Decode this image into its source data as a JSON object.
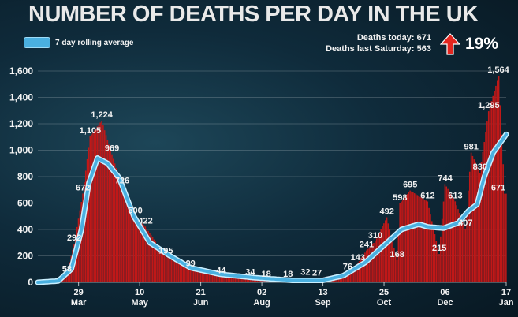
{
  "title": "NUMBER OF DEATHS PER DAY IN THE UK",
  "legend_label": "7 day rolling average",
  "stats": {
    "today_label": "Deaths today: 671",
    "last_saturday_label": "Deaths last Saturday: 563",
    "change_pct": "19%",
    "arrow_icon": "arrow-up-icon",
    "arrow_color": "#e4261f"
  },
  "colors": {
    "bars": "#c01818",
    "average_line": "#4ab0e0",
    "average_outline": "#c9efff",
    "background": "#0f2b3b"
  },
  "chart_data": {
    "type": "bar",
    "start_date": "2020-03-01",
    "end_date": "2021-01-17",
    "ylim": [
      0,
      1600
    ],
    "y_ticks": [
      0,
      200,
      400,
      600,
      800,
      1000,
      1200,
      1400,
      1600
    ],
    "y_tick_labels": [
      "0",
      "200",
      "400",
      "600",
      "800",
      "1,000",
      "1,200",
      "1,400",
      "1,600"
    ],
    "x_ticks": [
      {
        "date": "2020-03-29",
        "day": "29",
        "month": "Mar"
      },
      {
        "date": "2020-05-10",
        "day": "10",
        "month": "May"
      },
      {
        "date": "2020-06-21",
        "day": "21",
        "month": "Jun"
      },
      {
        "date": "2020-08-02",
        "day": "02",
        "month": "Aug"
      },
      {
        "date": "2020-09-13",
        "day": "13",
        "month": "Sep"
      },
      {
        "date": "2020-10-25",
        "day": "25",
        "month": "Oct"
      },
      {
        "date": "2020-12-06",
        "day": "06",
        "month": "Dec"
      },
      {
        "date": "2021-01-17",
        "day": "17",
        "month": "Jan"
      }
    ],
    "daily_deaths_anchors": [
      [
        "2020-03-01",
        0
      ],
      [
        "2020-03-15",
        20
      ],
      [
        "2020-03-21",
        58
      ],
      [
        "2020-03-26",
        292
      ],
      [
        "2020-04-01",
        672
      ],
      [
        "2020-04-06",
        1105
      ],
      [
        "2020-04-14",
        1224
      ],
      [
        "2020-04-21",
        969
      ],
      [
        "2020-04-28",
        726
      ],
      [
        "2020-05-07",
        500
      ],
      [
        "2020-05-14",
        422
      ],
      [
        "2020-05-28",
        195
      ],
      [
        "2020-06-14",
        99
      ],
      [
        "2020-07-05",
        44
      ],
      [
        "2020-07-25",
        34
      ],
      [
        "2020-08-05",
        18
      ],
      [
        "2020-08-20",
        18
      ],
      [
        "2020-09-01",
        32
      ],
      [
        "2020-09-09",
        27
      ],
      [
        "2020-09-30",
        76
      ],
      [
        "2020-10-07",
        143
      ],
      [
        "2020-10-13",
        241
      ],
      [
        "2020-10-19",
        310
      ],
      [
        "2020-10-27",
        492
      ],
      [
        "2020-11-03",
        168
      ],
      [
        "2020-11-05",
        598
      ],
      [
        "2020-11-12",
        695
      ],
      [
        "2020-11-24",
        612
      ],
      [
        "2020-12-02",
        215
      ],
      [
        "2020-12-06",
        744
      ],
      [
        "2020-12-13",
        613
      ],
      [
        "2020-12-20",
        407
      ],
      [
        "2020-12-24",
        981
      ],
      [
        "2020-12-30",
        830
      ],
      [
        "2021-01-05",
        1295
      ],
      [
        "2021-01-12",
        1564
      ],
      [
        "2021-01-16",
        671
      ],
      [
        "2021-01-17",
        671
      ]
    ],
    "rolling_average_anchors": [
      [
        "2020-03-01",
        0
      ],
      [
        "2020-03-15",
        10
      ],
      [
        "2020-03-24",
        100
      ],
      [
        "2020-03-31",
        400
      ],
      [
        "2020-04-05",
        750
      ],
      [
        "2020-04-11",
        940
      ],
      [
        "2020-04-18",
        900
      ],
      [
        "2020-04-26",
        790
      ],
      [
        "2020-05-06",
        500
      ],
      [
        "2020-05-17",
        300
      ],
      [
        "2020-05-31",
        200
      ],
      [
        "2020-06-14",
        110
      ],
      [
        "2020-07-05",
        60
      ],
      [
        "2020-07-28",
        35
      ],
      [
        "2020-08-23",
        15
      ],
      [
        "2020-09-13",
        15
      ],
      [
        "2020-09-27",
        50
      ],
      [
        "2020-10-12",
        150
      ],
      [
        "2020-10-25",
        280
      ],
      [
        "2020-11-06",
        400
      ],
      [
        "2020-11-18",
        440
      ],
      [
        "2020-11-24",
        420
      ],
      [
        "2020-12-05",
        410
      ],
      [
        "2020-12-15",
        450
      ],
      [
        "2020-12-22",
        540
      ],
      [
        "2020-12-28",
        590
      ],
      [
        "2021-01-02",
        800
      ],
      [
        "2021-01-08",
        980
      ],
      [
        "2021-01-17",
        1120
      ]
    ],
    "data_labels": [
      {
        "date": "2020-03-21",
        "value": 58,
        "text": "58"
      },
      {
        "date": "2020-03-26",
        "value": 292,
        "text": "292"
      },
      {
        "date": "2020-04-01",
        "value": 672,
        "text": "672"
      },
      {
        "date": "2020-04-06",
        "value": 1105,
        "text": "1,105"
      },
      {
        "date": "2020-04-14",
        "value": 1224,
        "text": "1,224"
      },
      {
        "date": "2020-04-21",
        "value": 969,
        "text": "969"
      },
      {
        "date": "2020-04-28",
        "value": 726,
        "text": "726"
      },
      {
        "date": "2020-05-07",
        "value": 500,
        "text": "500"
      },
      {
        "date": "2020-05-14",
        "value": 422,
        "text": "422"
      },
      {
        "date": "2020-05-28",
        "value": 195,
        "text": "195"
      },
      {
        "date": "2020-06-14",
        "value": 99,
        "text": "99"
      },
      {
        "date": "2020-07-05",
        "value": 44,
        "text": "44"
      },
      {
        "date": "2020-07-25",
        "value": 34,
        "text": "34"
      },
      {
        "date": "2020-08-05",
        "value": 18,
        "text": "18"
      },
      {
        "date": "2020-08-20",
        "value": 18,
        "text": "18"
      },
      {
        "date": "2020-09-01",
        "value": 32,
        "text": "32"
      },
      {
        "date": "2020-09-09",
        "value": 27,
        "text": "27"
      },
      {
        "date": "2020-09-30",
        "value": 76,
        "text": "76"
      },
      {
        "date": "2020-10-07",
        "value": 143,
        "text": "143"
      },
      {
        "date": "2020-10-13",
        "value": 241,
        "text": "241"
      },
      {
        "date": "2020-10-19",
        "value": 310,
        "text": "310"
      },
      {
        "date": "2020-10-27",
        "value": 492,
        "text": "492"
      },
      {
        "date": "2020-11-03",
        "value": 168,
        "text": "168"
      },
      {
        "date": "2020-11-05",
        "value": 598,
        "text": "598"
      },
      {
        "date": "2020-11-12",
        "value": 695,
        "text": "695"
      },
      {
        "date": "2020-11-24",
        "value": 612,
        "text": "612"
      },
      {
        "date": "2020-12-02",
        "value": 215,
        "text": "215"
      },
      {
        "date": "2020-12-06",
        "value": 744,
        "text": "744"
      },
      {
        "date": "2020-12-13",
        "value": 613,
        "text": "613"
      },
      {
        "date": "2020-12-20",
        "value": 407,
        "text": "407"
      },
      {
        "date": "2020-12-24",
        "value": 981,
        "text": "981"
      },
      {
        "date": "2020-12-30",
        "value": 830,
        "text": "830"
      },
      {
        "date": "2021-01-05",
        "value": 1295,
        "text": "1,295"
      },
      {
        "date": "2021-01-12",
        "value": 1564,
        "text": "1,564"
      },
      {
        "date": "2021-01-16",
        "value": 671,
        "text": "671"
      }
    ]
  }
}
